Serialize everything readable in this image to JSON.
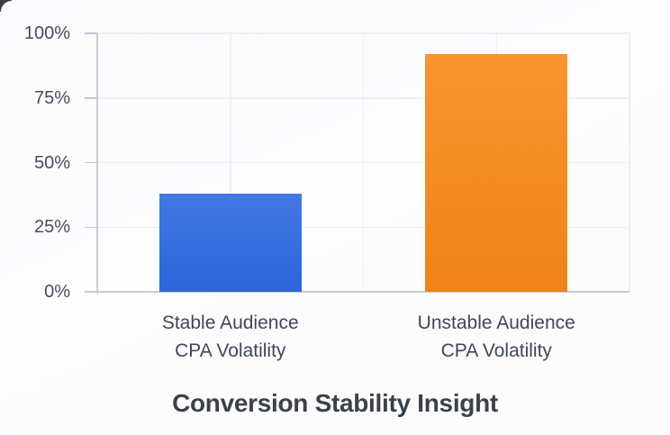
{
  "chart_data": {
    "type": "bar",
    "title": "Conversion Stability Insight",
    "categories": [
      {
        "line1": "Stable Audience",
        "line2": "CPA Volatility"
      },
      {
        "line1": "Unstable Audience",
        "line2": "CPA Volatility"
      }
    ],
    "values": [
      38,
      92
    ],
    "series_colors": [
      "#2d69e1",
      "#f98819"
    ],
    "ytick_labels": [
      "0%",
      "25%",
      "50%",
      "75%",
      "100%"
    ],
    "ylim": [
      0,
      100
    ],
    "xlabel": "",
    "ylabel": "",
    "grid": true,
    "legend_position": "none"
  }
}
